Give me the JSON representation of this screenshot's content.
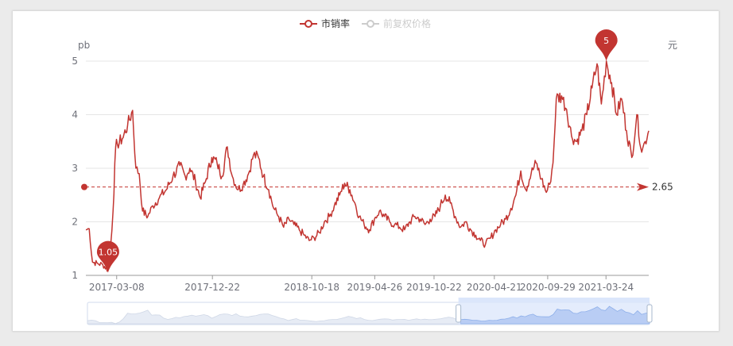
{
  "legend": [
    {
      "label": "市销率",
      "color": "#c23531",
      "active": true
    },
    {
      "label": "前复权价格",
      "color": "#cccccc",
      "active": false
    }
  ],
  "colors": {
    "series": "#c23531",
    "axis_text": "#6e7079",
    "grid": "#e6e6e6",
    "zoom_fill": "#dbe6fb",
    "zoom_border": "#d2dbee"
  },
  "chart_data": {
    "type": "line",
    "title": "",
    "y_left_label": "pb",
    "y_right_label": "元",
    "ylim": [
      1,
      5
    ],
    "y_ticks": [
      1,
      2,
      3,
      4,
      5
    ],
    "x_range": [
      "2016-12-05",
      "2021-07-31"
    ],
    "x_tick_labels": [
      "2017-03-08",
      "2017-12-22",
      "2018-10-18",
      "2019-04-26",
      "2019-10-22",
      "2020-04-21",
      "2020-09-29",
      "2021-03-24"
    ],
    "grid": true,
    "legend_position": "top-center",
    "series": [
      {
        "name": "市销率",
        "points": [
          [
            "2016-12-05",
            1.85
          ],
          [
            "2016-12-15",
            1.87
          ],
          [
            "2016-12-25",
            1.25
          ],
          [
            "2017-01-10",
            1.22
          ],
          [
            "2017-01-25",
            1.2
          ],
          [
            "2017-02-10",
            1.1
          ],
          [
            "2017-02-15",
            1.3
          ],
          [
            "2017-02-25",
            2.2
          ],
          [
            "2017-03-05",
            3.4
          ],
          [
            "2017-03-10",
            3.45
          ],
          [
            "2017-03-25",
            3.55
          ],
          [
            "2017-04-10",
            3.8
          ],
          [
            "2017-04-25",
            4.08
          ],
          [
            "2017-05-05",
            3.0
          ],
          [
            "2017-05-15",
            2.9
          ],
          [
            "2017-05-25",
            2.2
          ],
          [
            "2017-06-10",
            2.1
          ],
          [
            "2017-06-25",
            2.3
          ],
          [
            "2017-07-15",
            2.45
          ],
          [
            "2017-08-05",
            2.6
          ],
          [
            "2017-08-25",
            2.85
          ],
          [
            "2017-09-15",
            3.05
          ],
          [
            "2017-10-01",
            2.85
          ],
          [
            "2017-10-15",
            3.0
          ],
          [
            "2017-11-01",
            2.75
          ],
          [
            "2017-11-15",
            2.45
          ],
          [
            "2017-12-01",
            2.75
          ],
          [
            "2017-12-20",
            3.2
          ],
          [
            "2018-01-05",
            3.1
          ],
          [
            "2018-01-20",
            2.85
          ],
          [
            "2018-02-05",
            3.4
          ],
          [
            "2018-02-20",
            2.85
          ],
          [
            "2018-03-10",
            2.6
          ],
          [
            "2018-03-25",
            2.7
          ],
          [
            "2018-04-10",
            2.9
          ],
          [
            "2018-04-25",
            3.25
          ],
          [
            "2018-05-10",
            3.2
          ],
          [
            "2018-05-25",
            2.85
          ],
          [
            "2018-06-10",
            2.6
          ],
          [
            "2018-06-25",
            2.25
          ],
          [
            "2018-07-10",
            2.1
          ],
          [
            "2018-07-25",
            1.9
          ],
          [
            "2018-08-10",
            2.05
          ],
          [
            "2018-08-25",
            1.95
          ],
          [
            "2018-09-10",
            1.85
          ],
          [
            "2018-09-25",
            1.75
          ],
          [
            "2018-10-10",
            1.65
          ],
          [
            "2018-10-25",
            1.7
          ],
          [
            "2018-11-10",
            1.8
          ],
          [
            "2018-11-25",
            2.0
          ],
          [
            "2018-12-10",
            2.1
          ],
          [
            "2018-12-25",
            2.3
          ],
          [
            "2019-01-10",
            2.5
          ],
          [
            "2019-01-25",
            2.72
          ],
          [
            "2019-02-10",
            2.6
          ],
          [
            "2019-02-25",
            2.35
          ],
          [
            "2019-03-10",
            2.1
          ],
          [
            "2019-03-25",
            1.95
          ],
          [
            "2019-04-10",
            1.85
          ],
          [
            "2019-04-25",
            2.05
          ],
          [
            "2019-05-10",
            2.2
          ],
          [
            "2019-05-25",
            2.1
          ],
          [
            "2019-06-10",
            2.0
          ],
          [
            "2019-06-25",
            1.95
          ],
          [
            "2019-07-10",
            1.9
          ],
          [
            "2019-07-25",
            1.85
          ],
          [
            "2019-08-10",
            2.0
          ],
          [
            "2019-08-25",
            2.1
          ],
          [
            "2019-09-10",
            2.05
          ],
          [
            "2019-09-25",
            1.95
          ],
          [
            "2019-10-10",
            2.05
          ],
          [
            "2019-10-25",
            2.1
          ],
          [
            "2019-11-10",
            2.3
          ],
          [
            "2019-11-25",
            2.5
          ],
          [
            "2019-12-10",
            2.35
          ],
          [
            "2019-12-25",
            2.1
          ],
          [
            "2020-01-10",
            1.9
          ],
          [
            "2020-01-25",
            2.0
          ],
          [
            "2020-02-10",
            1.85
          ],
          [
            "2020-02-25",
            1.75
          ],
          [
            "2020-03-10",
            1.65
          ],
          [
            "2020-03-25",
            1.58
          ],
          [
            "2020-04-10",
            1.7
          ],
          [
            "2020-04-25",
            1.85
          ],
          [
            "2020-05-10",
            1.95
          ],
          [
            "2020-05-25",
            2.05
          ],
          [
            "2020-06-10",
            2.25
          ],
          [
            "2020-06-25",
            2.5
          ],
          [
            "2020-07-10",
            2.95
          ],
          [
            "2020-07-25",
            2.6
          ],
          [
            "2020-08-10",
            2.9
          ],
          [
            "2020-08-25",
            3.1
          ],
          [
            "2020-09-10",
            2.8
          ],
          [
            "2020-09-25",
            2.55
          ],
          [
            "2020-10-05",
            2.7
          ],
          [
            "2020-10-15",
            3.1
          ],
          [
            "2020-10-25",
            4.3
          ],
          [
            "2020-11-10",
            4.35
          ],
          [
            "2020-11-25",
            4.1
          ],
          [
            "2020-12-10",
            3.6
          ],
          [
            "2020-12-25",
            3.5
          ],
          [
            "2021-01-10",
            3.7
          ],
          [
            "2021-01-25",
            4.0
          ],
          [
            "2021-02-10",
            4.5
          ],
          [
            "2021-02-25",
            4.95
          ],
          [
            "2021-03-10",
            4.2
          ],
          [
            "2021-03-25",
            5.0
          ],
          [
            "2021-04-10",
            4.6
          ],
          [
            "2021-04-25",
            4.0
          ],
          [
            "2021-05-10",
            4.3
          ],
          [
            "2021-05-25",
            3.7
          ],
          [
            "2021-06-10",
            3.2
          ],
          [
            "2021-06-25",
            4.0
          ],
          [
            "2021-07-10",
            3.3
          ],
          [
            "2021-07-20",
            3.5
          ],
          [
            "2021-07-31",
            3.7
          ]
        ]
      }
    ],
    "mark_points": [
      {
        "label": "5",
        "date": "2021-03-25",
        "value": 5.0
      },
      {
        "label": "1.05",
        "date": "2017-02-10",
        "value": 1.05
      }
    ],
    "mark_line": {
      "label": "2.65",
      "value": 2.65
    },
    "data_zoom_range": [
      0.66,
      1.0
    ]
  }
}
